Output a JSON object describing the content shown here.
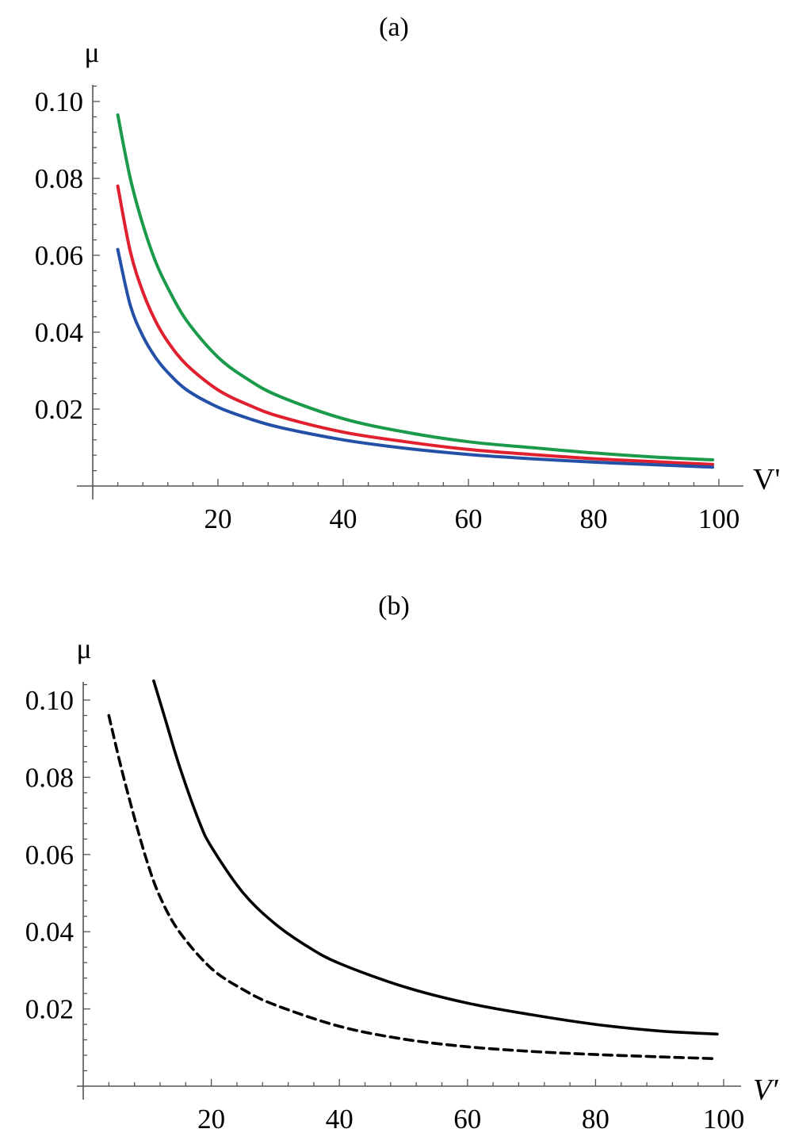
{
  "chart_data": [
    {
      "type": "line",
      "title": "(a)",
      "xlabel": "V'",
      "ylabel": "μ",
      "xlim": [
        0,
        102
      ],
      "ylim": [
        0,
        0.105
      ],
      "grid": false,
      "x_ticks": [
        "20",
        "40",
        "60",
        "80",
        "100"
      ],
      "y_ticks": [
        "0.02",
        "0.04",
        "0.06",
        "0.08",
        "0.10"
      ],
      "series": [
        {
          "color": "#1a9a4a",
          "style": "solid",
          "x": [
            4,
            6,
            8,
            10,
            12,
            15,
            20,
            25,
            30,
            40,
            50,
            60,
            70,
            80,
            90,
            99
          ],
          "y": [
            0.0965,
            0.08,
            0.068,
            0.0585,
            0.0515,
            0.043,
            0.0335,
            0.0275,
            0.0232,
            0.0175,
            0.014,
            0.0115,
            0.01,
            0.0086,
            0.0075,
            0.0068
          ]
        },
        {
          "color": "#e0202e",
          "style": "solid",
          "x": [
            4,
            6,
            8,
            10,
            12,
            15,
            20,
            25,
            30,
            40,
            50,
            60,
            70,
            80,
            90,
            99
          ],
          "y": [
            0.078,
            0.061,
            0.0505,
            0.043,
            0.0375,
            0.0315,
            0.025,
            0.021,
            0.018,
            0.014,
            0.0115,
            0.0095,
            0.0082,
            0.0071,
            0.0063,
            0.0056
          ]
        },
        {
          "color": "#2450a8",
          "style": "solid",
          "x": [
            4,
            6,
            8,
            10,
            12,
            15,
            20,
            25,
            30,
            40,
            50,
            60,
            70,
            80,
            90,
            99
          ],
          "y": [
            0.0615,
            0.047,
            0.039,
            0.0335,
            0.0295,
            0.025,
            0.0205,
            0.0175,
            0.0152,
            0.012,
            0.0098,
            0.0082,
            0.0071,
            0.0062,
            0.0055,
            0.0049
          ]
        }
      ]
    },
    {
      "type": "line",
      "title": "(b)",
      "xlabel": "V′",
      "ylabel": "μ",
      "xlim": [
        0,
        102
      ],
      "ylim": [
        0,
        0.105
      ],
      "grid": false,
      "x_ticks": [
        "20",
        "40",
        "60",
        "80",
        "100"
      ],
      "y_ticks": [
        "0.02",
        "0.04",
        "0.06",
        "0.08",
        "0.10"
      ],
      "series": [
        {
          "color": "#000000",
          "style": "solid",
          "x": [
            11,
            13,
            15,
            18,
            20,
            25,
            30,
            35,
            40,
            50,
            60,
            70,
            80,
            90,
            99
          ],
          "y": [
            0.105,
            0.094,
            0.083,
            0.069,
            0.062,
            0.05,
            0.042,
            0.0362,
            0.0318,
            0.0258,
            0.0215,
            0.0185,
            0.016,
            0.0143,
            0.0135
          ]
        },
        {
          "color": "#000000",
          "style": "dashed",
          "x": [
            4,
            6,
            8,
            10,
            12,
            15,
            20,
            25,
            30,
            40,
            50,
            60,
            70,
            80,
            90,
            99
          ],
          "y": [
            0.096,
            0.082,
            0.0695,
            0.058,
            0.049,
            0.04,
            0.0305,
            0.025,
            0.021,
            0.0155,
            0.0122,
            0.0102,
            0.009,
            0.0082,
            0.0076,
            0.0071
          ]
        }
      ]
    }
  ]
}
